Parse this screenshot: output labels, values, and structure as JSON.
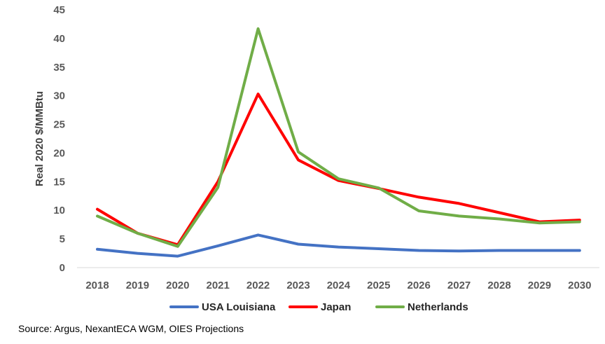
{
  "chart_data": {
    "type": "line",
    "title": "",
    "xlabel": "",
    "ylabel": "Real 2020 $/MMBtu",
    "ylim": [
      0,
      45
    ],
    "yticks": [
      0,
      5,
      10,
      15,
      20,
      25,
      30,
      35,
      40,
      45
    ],
    "categories": [
      "2018",
      "2019",
      "2020",
      "2021",
      "2022",
      "2023",
      "2024",
      "2025",
      "2026",
      "2027",
      "2028",
      "2029",
      "2030"
    ],
    "series": [
      {
        "name": "USA Louisiana",
        "color": "#4472C4",
        "values": [
          3.2,
          2.5,
          2.0,
          3.8,
          5.7,
          4.1,
          3.6,
          3.3,
          3.0,
          2.9,
          3.0,
          3.0,
          3.0
        ]
      },
      {
        "name": "Japan",
        "color": "#FF0000",
        "values": [
          10.2,
          6.0,
          4.0,
          15.0,
          30.3,
          18.8,
          15.2,
          13.8,
          12.3,
          11.2,
          9.6,
          8.0,
          8.3
        ]
      },
      {
        "name": "Netherlands",
        "color": "#70AD47",
        "values": [
          9.0,
          6.0,
          3.7,
          14.0,
          41.7,
          20.2,
          15.5,
          13.9,
          9.9,
          9.0,
          8.5,
          7.8,
          8.0
        ]
      }
    ],
    "grid": false,
    "legend_position": "bottom"
  },
  "source_note": "Source: Argus, NexantECA WGM, OIES Projections"
}
